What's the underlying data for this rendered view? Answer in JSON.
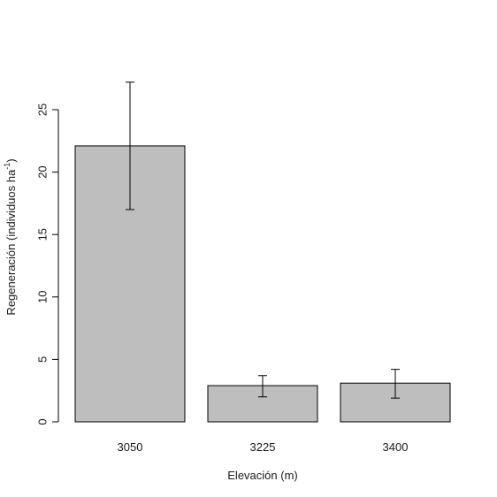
{
  "chart_data": {
    "type": "bar",
    "categories": [
      "3050",
      "3225",
      "3400"
    ],
    "values": [
      22.1,
      2.9,
      3.1
    ],
    "error_bars": [
      {
        "low": 17.0,
        "high": 27.2
      },
      {
        "low": 2.0,
        "high": 3.7
      },
      {
        "low": 1.9,
        "high": 4.2
      }
    ],
    "xlabel": "Elevación (m)",
    "ylabel_main": "Regeneración (individuos ha",
    "ylabel_sup": "-1",
    "ylabel_close": ")",
    "yticks": [
      "0",
      "5",
      "10",
      "15",
      "20",
      "25"
    ],
    "ylim": [
      0,
      27.5
    ],
    "grid": false,
    "bar_color": "#bebebe",
    "edge_color": "#000000"
  }
}
